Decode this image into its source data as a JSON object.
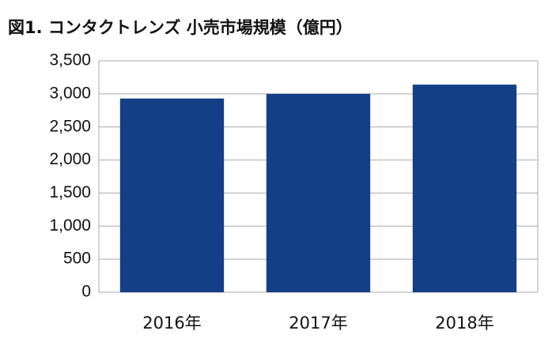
{
  "chart_data": {
    "type": "bar",
    "title": "図1. コンタクトレンズ 小売市場規模（億円）",
    "categories": [
      "2016年",
      "2017年",
      "2018年"
    ],
    "values": [
      2930,
      3000,
      3140
    ],
    "color": "#123f86",
    "ylim": [
      0,
      3500
    ],
    "yticks": [
      0,
      500,
      {
        "value": 1000,
        "label": "1,000"
      },
      {
        "value": 1500,
        "label": "1,500"
      },
      {
        "value": 2000,
        "label": "2,000"
      },
      {
        "value": 2500,
        "label": "2,500"
      },
      {
        "value": 3000,
        "label": "3,000"
      },
      {
        "value": 3500,
        "label": "3,500"
      }
    ],
    "grid": true
  }
}
